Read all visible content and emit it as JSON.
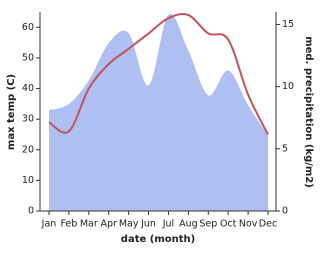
{
  "chart_data": {
    "type": "line-area",
    "x_label": "date (month)",
    "y_label": "max temp (C)",
    "y2_label": "med. precipitation (kg/m2)",
    "categories": [
      "Jan",
      "Feb",
      "Mar",
      "Apr",
      "May",
      "Jun",
      "Jul",
      "Aug",
      "Sep",
      "Oct",
      "Nov",
      "Dec"
    ],
    "series": [
      {
        "name": "med. precipitation",
        "color": "#b0bff2",
        "axis": "y2",
        "values": [
          8.1,
          8.6,
          10.5,
          13.5,
          14.3,
          10.1,
          15.8,
          12.9,
          9.3,
          11.3,
          8.5,
          6.1
        ]
      },
      {
        "name": "max temp",
        "color": "#c0545c",
        "values": [
          29,
          26,
          40,
          48,
          53,
          58,
          63,
          64,
          58,
          56,
          38,
          25
        ]
      }
    ],
    "ylim": [
      0,
      65
    ],
    "yticks": [
      0,
      10,
      20,
      30,
      40,
      50,
      60
    ],
    "y2lim": [
      0,
      16
    ],
    "y2ticks": [
      0,
      5,
      10,
      15
    ]
  }
}
